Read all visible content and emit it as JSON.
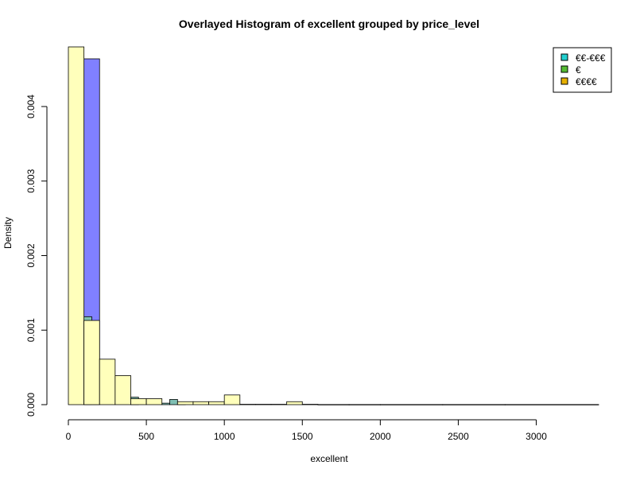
{
  "chart_data": {
    "type": "histogram",
    "title": "Overlayed Histogram of excellent grouped by price_level",
    "xlabel": "excellent",
    "ylabel": "Density",
    "xlim": [
      0,
      3400
    ],
    "ylim": [
      0,
      0.0048
    ],
    "x_ticks": [
      0,
      500,
      1000,
      1500,
      2000,
      2500,
      3000
    ],
    "x_tick_labels": [
      "0",
      "500",
      "1000",
      "1500",
      "2000",
      "2500",
      "3000"
    ],
    "y_ticks": [
      0,
      0.001,
      0.002,
      0.003,
      0.004
    ],
    "y_tick_labels": [
      "0.000",
      "0.001",
      "0.002",
      "0.003",
      "0.004"
    ],
    "legend": {
      "position": "top-right",
      "entries": [
        {
          "label": "€€-€€€",
          "color": "#22cfcf"
        },
        {
          "label": "€",
          "color": "#55bb33"
        },
        {
          "label": "€€€€",
          "color": "#e6b000"
        }
      ]
    },
    "series": [
      {
        "fill": "#8080ff",
        "bins": [
          {
            "x0": 100,
            "x1": 200,
            "y": 0.00464
          }
        ]
      },
      {
        "fill": "#7fbfb3",
        "bins": [
          {
            "x0": 100,
            "x1": 150,
            "y": 0.00118
          },
          {
            "x0": 400,
            "x1": 450,
            "y": 0.0001
          },
          {
            "x0": 600,
            "x1": 650,
            "y": 2e-05
          },
          {
            "x0": 650,
            "x1": 700,
            "y": 7e-05
          },
          {
            "x0": 700,
            "x1": 750,
            "y": 1e-05
          }
        ]
      },
      {
        "fill": "#ffffbb",
        "bins": [
          {
            "x0": 0,
            "x1": 100,
            "y": 0.0048
          },
          {
            "x0": 100,
            "x1": 200,
            "y": 0.00113
          },
          {
            "x0": 200,
            "x1": 300,
            "y": 0.00061
          },
          {
            "x0": 300,
            "x1": 400,
            "y": 0.00039
          },
          {
            "x0": 400,
            "x1": 500,
            "y": 8e-05
          },
          {
            "x0": 500,
            "x1": 600,
            "y": 8e-05
          },
          {
            "x0": 700,
            "x1": 800,
            "y": 4e-05
          },
          {
            "x0": 800,
            "x1": 900,
            "y": 4e-05
          },
          {
            "x0": 900,
            "x1": 1000,
            "y": 4e-05
          },
          {
            "x0": 1000,
            "x1": 1100,
            "y": 0.00013
          },
          {
            "x0": 1100,
            "x1": 1200,
            "y": 5e-06
          },
          {
            "x0": 1200,
            "x1": 1300,
            "y": 5e-06
          },
          {
            "x0": 1300,
            "x1": 1400,
            "y": 5e-06
          },
          {
            "x0": 1400,
            "x1": 1500,
            "y": 4e-05
          },
          {
            "x0": 1500,
            "x1": 1600,
            "y": 5e-06
          },
          {
            "x0": 1600,
            "x1": 1800,
            "y": 2e-06
          },
          {
            "x0": 1800,
            "x1": 2000,
            "y": 2e-06
          },
          {
            "x0": 2000,
            "x1": 2400,
            "y": 2e-06
          },
          {
            "x0": 2400,
            "x1": 2800,
            "y": 2e-06
          },
          {
            "x0": 2800,
            "x1": 3400,
            "y": 2e-06
          }
        ]
      }
    ]
  }
}
